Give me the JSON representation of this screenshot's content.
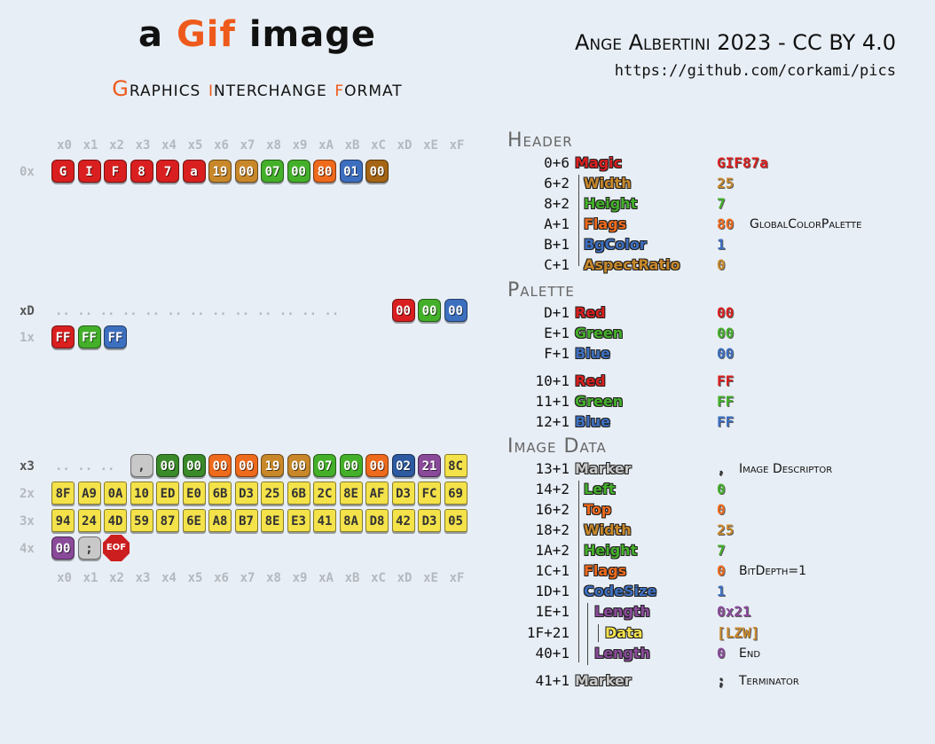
{
  "header": {
    "title_a": "a",
    "title_gif": "Gif",
    "title_image": "image",
    "subtitle_parts": [
      "G",
      "raphics ",
      "i",
      "nterchange ",
      "f",
      "ormat"
    ],
    "author": "Ange Albertini 2023 - CC BY 4.0",
    "url": "https://github.com/corkami/pics"
  },
  "hex": {
    "columns": [
      "x0",
      "x1",
      "x2",
      "x3",
      "x4",
      "x5",
      "x6",
      "x7",
      "x8",
      "x9",
      "xA",
      "xB",
      "xC",
      "xD",
      "xE",
      "xF"
    ],
    "row_labels": {
      "r0": "0x",
      "rD": "xD",
      "r1": "1x",
      "r3": "x3",
      "r2": "2x",
      "r3b": "3x",
      "r4": "4x"
    },
    "row0": [
      "G",
      "I",
      "F",
      "8",
      "7",
      "a",
      "19",
      "00",
      "07",
      "00",
      "80",
      "01",
      "00"
    ],
    "rowD_dots": ".. .. .. .. .. .. .. .. .. .. .. .. ..",
    "rowD": [
      "00",
      "00",
      "00"
    ],
    "row1": [
      "FF",
      "FF",
      "FF"
    ],
    "row3_dots": ".. .. ..",
    "row3": [
      ",",
      "00",
      "00",
      "00",
      "00",
      "19",
      "00",
      "07",
      "00",
      "00",
      "02",
      "21",
      "8C"
    ],
    "row2": [
      "8F",
      "A9",
      "0A",
      "10",
      "ED",
      "E0",
      "6B",
      "D3",
      "25",
      "6B",
      "2C",
      "8E",
      "AF",
      "D3",
      "FC",
      "69"
    ],
    "row3b": [
      "94",
      "24",
      "4D",
      "59",
      "87",
      "6E",
      "A8",
      "B7",
      "8E",
      "E3",
      "41",
      "8A",
      "D8",
      "42",
      "D3",
      "05"
    ],
    "row4": [
      "00",
      ";"
    ],
    "eof": "EOF"
  },
  "sections": {
    "header": "Header",
    "palette": "Palette",
    "image_data": "Image Data"
  },
  "fields": {
    "header": [
      {
        "off": "0+6",
        "name": "Magic",
        "val": "GIF87a"
      },
      {
        "off": "6+2",
        "name": "Width",
        "val": "25"
      },
      {
        "off": "8+2",
        "name": "Height",
        "val": "7"
      },
      {
        "off": "A+1",
        "name": "Flags",
        "val": "80",
        "note": "GlobalColorPalette"
      },
      {
        "off": "B+1",
        "name": "BgColor",
        "val": "1"
      },
      {
        "off": "C+1",
        "name": "AspectRatio",
        "val": "0"
      }
    ],
    "palette": [
      {
        "off": "D+1",
        "name": "Red",
        "val": "00"
      },
      {
        "off": "E+1",
        "name": "Green",
        "val": "00"
      },
      {
        "off": "F+1",
        "name": "Blue",
        "val": "00"
      },
      {
        "off": "10+1",
        "name": "Red",
        "val": "FF"
      },
      {
        "off": "11+1",
        "name": "Green",
        "val": "FF"
      },
      {
        "off": "12+1",
        "name": "Blue",
        "val": "FF"
      }
    ],
    "image": [
      {
        "off": "13+1",
        "name": "Marker",
        "val": ",",
        "note": "Image Descriptor"
      },
      {
        "off": "14+2",
        "name": "Left",
        "val": "0"
      },
      {
        "off": "16+2",
        "name": "Top",
        "val": "0"
      },
      {
        "off": "18+2",
        "name": "Width",
        "val": "25"
      },
      {
        "off": "1A+2",
        "name": "Height",
        "val": "7"
      },
      {
        "off": "1C+1",
        "name": "Flags",
        "val": "0",
        "note": "BitDepth=1"
      },
      {
        "off": "1D+1",
        "name": "CodeSize",
        "val": "1"
      },
      {
        "off": "1E+1",
        "name": "Length",
        "val": "0x21"
      },
      {
        "off": "1F+21",
        "name": "Data",
        "val": "[LZW]"
      },
      {
        "off": "40+1",
        "name": "Length",
        "val": "0",
        "note": "End"
      },
      {
        "off": "41+1",
        "name": "Marker",
        "val": ";",
        "note": "Terminator"
      }
    ]
  },
  "colors": {
    "red": "#d91f1f",
    "tan": "#c8882a",
    "green": "#44b02a",
    "orange": "#ee6a1c",
    "blue": "#3d6fbf",
    "brown": "#a56515",
    "purple": "#8a4a9a",
    "yellow": "#f4e24a",
    "gray": "#c8c8c8"
  }
}
